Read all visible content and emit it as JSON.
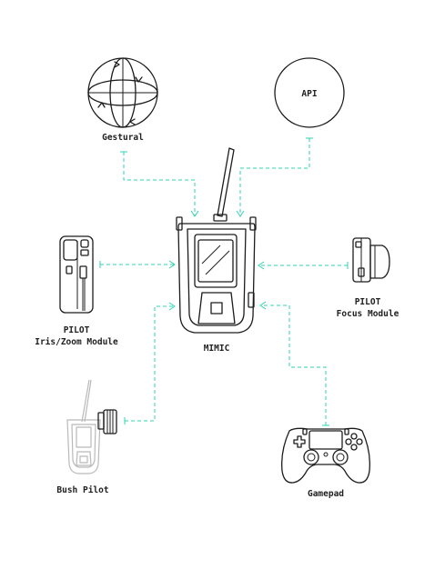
{
  "labels": {
    "gestural": "Gestural",
    "api": "API",
    "pilot_iris_line1": "PILOT",
    "pilot_iris_line2": "Iris/Zoom Module",
    "mimic": "MIMIC",
    "pilot_focus_line1": "PILOT",
    "pilot_focus_line2": "Focus Module",
    "bush_pilot": "Bush Pilot",
    "gamepad": "Gamepad"
  },
  "colors": {
    "connector": "#2fd6b0",
    "ink": "#1c1c1c",
    "ghost": "#b9b9b9",
    "background": "#ffffff"
  }
}
